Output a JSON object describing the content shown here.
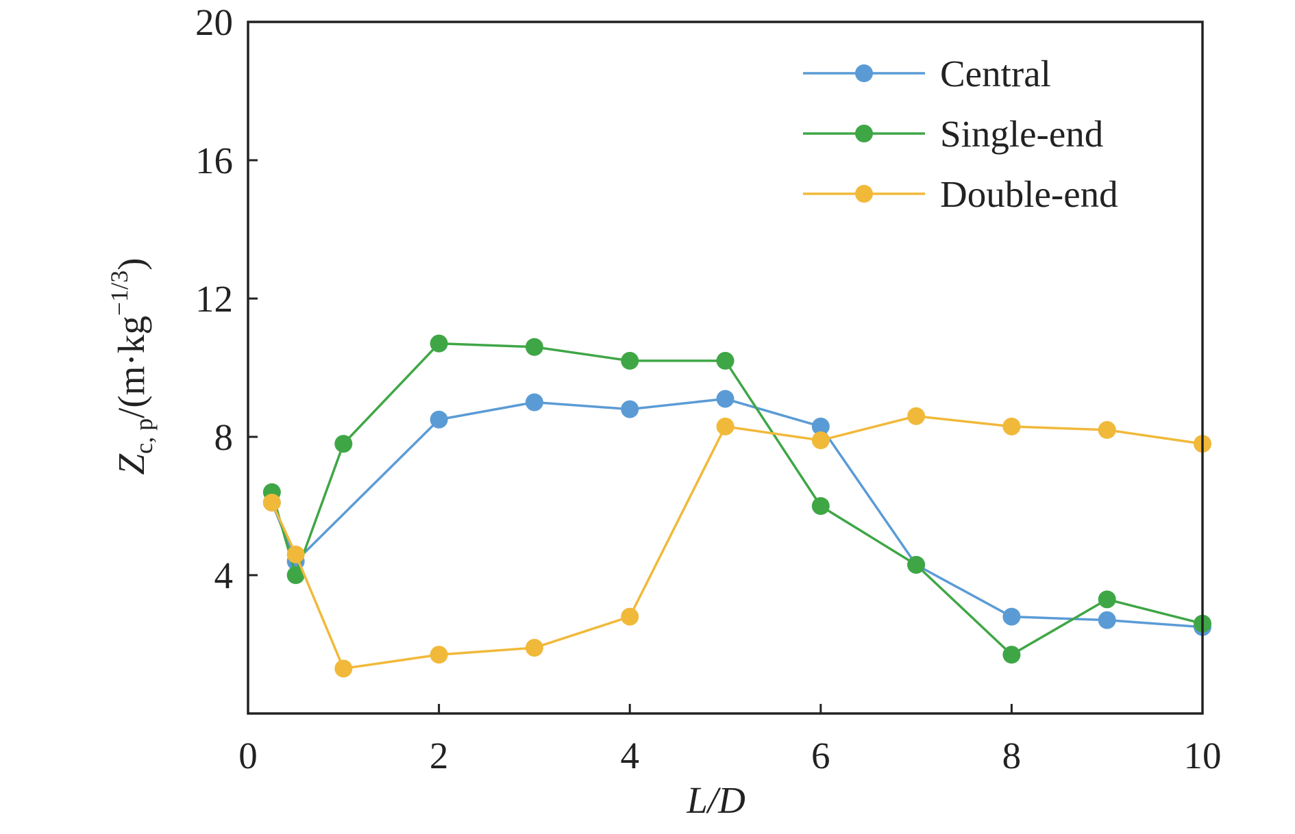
{
  "chart_data": {
    "type": "line",
    "xlabel": {
      "base": "L/D"
    },
    "ylabel": {
      "main": "Z",
      "sub": "c, p",
      "unit_open": "/(m·kg",
      "unit_sup": "−1/3",
      "unit_close": ")"
    },
    "xlim": [
      0,
      10
    ],
    "ylim": [
      0,
      20
    ],
    "x_ticks": [
      0,
      2,
      4,
      6,
      8,
      10
    ],
    "y_ticks": [
      4,
      8,
      12,
      16,
      20
    ],
    "grid": false,
    "legend_position": "top-right",
    "series": [
      {
        "name": "Central",
        "color": "#5b9bd5",
        "x": [
          0.25,
          0.5,
          2,
          3,
          4,
          5,
          6,
          7,
          8,
          9,
          10
        ],
        "y": [
          6.1,
          4.4,
          8.5,
          9.0,
          8.8,
          9.1,
          8.3,
          4.3,
          2.8,
          2.7,
          2.5
        ]
      },
      {
        "name": "Single-end",
        "color": "#3fa646",
        "x": [
          0.25,
          0.5,
          1,
          2,
          3,
          4,
          5,
          6,
          7,
          8,
          9,
          10
        ],
        "y": [
          6.4,
          4.0,
          7.8,
          10.7,
          10.6,
          10.2,
          10.2,
          6.0,
          4.3,
          1.7,
          3.3,
          2.6
        ]
      },
      {
        "name": "Double-end",
        "color": "#f1b93a",
        "x": [
          0.25,
          0.5,
          1,
          2,
          3,
          4,
          5,
          6,
          7,
          8,
          9,
          10
        ],
        "y": [
          6.1,
          4.6,
          1.3,
          1.7,
          1.9,
          2.8,
          8.3,
          7.9,
          8.6,
          8.3,
          8.2,
          7.8
        ]
      }
    ]
  }
}
